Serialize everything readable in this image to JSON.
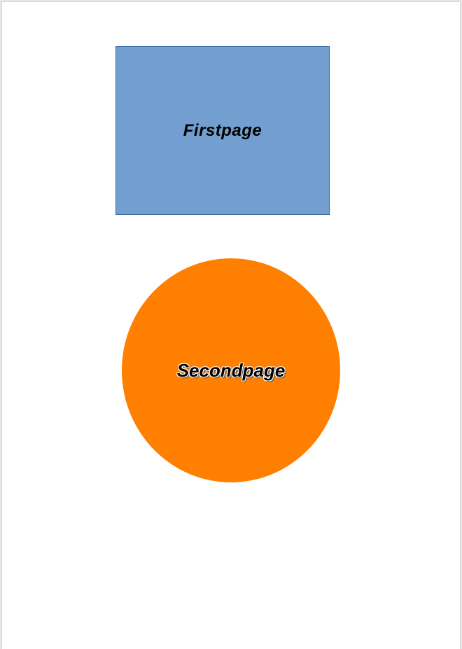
{
  "document": {
    "shapes": [
      {
        "type": "rectangle",
        "label": "Firstpage",
        "fill_color": "#729fcf",
        "border_color": "#3465a4"
      },
      {
        "type": "ellipse",
        "label": "Secondpage",
        "fill_color": "#ff7f00"
      }
    ]
  }
}
